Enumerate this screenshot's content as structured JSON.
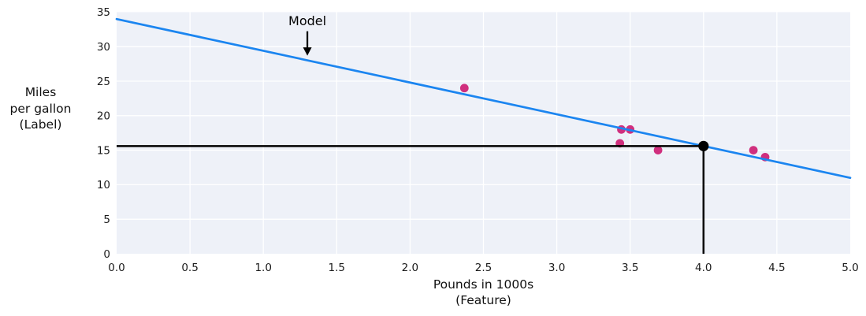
{
  "figure": {
    "background": "#ffffff",
    "plot_background": "#eef1f8",
    "grid_color": "#ffffff",
    "text_color": "#1a1a1a"
  },
  "chart_data": {
    "type": "scatter",
    "title": "",
    "xlabel_lines": [
      "Pounds in 1000s",
      "(Feature)"
    ],
    "ylabel_lines": [
      "Miles",
      "per gallon",
      "(Label)"
    ],
    "xlim": [
      0,
      5
    ],
    "ylim": [
      0,
      35
    ],
    "grid": true,
    "legend_position": "none",
    "x_ticks": [
      {
        "v": 0.0,
        "label": "0.0"
      },
      {
        "v": 0.5,
        "label": "0.5"
      },
      {
        "v": 1.0,
        "label": "1.0"
      },
      {
        "v": 1.5,
        "label": "1.5"
      },
      {
        "v": 2.0,
        "label": "2.0"
      },
      {
        "v": 2.5,
        "label": "2.5"
      },
      {
        "v": 3.0,
        "label": "3.0"
      },
      {
        "v": 3.5,
        "label": "3.5"
      },
      {
        "v": 4.0,
        "label": "4.0"
      },
      {
        "v": 4.5,
        "label": "4.5"
      },
      {
        "v": 5.0,
        "label": "5.0"
      }
    ],
    "y_ticks": [
      {
        "v": 0,
        "label": "0"
      },
      {
        "v": 5,
        "label": "5"
      },
      {
        "v": 10,
        "label": "10"
      },
      {
        "v": 15,
        "label": "15"
      },
      {
        "v": 20,
        "label": "20"
      },
      {
        "v": 25,
        "label": "25"
      },
      {
        "v": 30,
        "label": "30"
      },
      {
        "v": 35,
        "label": "35"
      }
    ],
    "series": [
      {
        "name": "data-points",
        "type": "scatter",
        "color": "#d02f7e",
        "marker_radius": 5.4,
        "points": [
          {
            "x": 3.5,
            "y": 18
          },
          {
            "x": 3.69,
            "y": 15
          },
          {
            "x": 3.44,
            "y": 18
          },
          {
            "x": 3.43,
            "y": 16
          },
          {
            "x": 4.34,
            "y": 15
          },
          {
            "x": 4.42,
            "y": 14
          },
          {
            "x": 2.37,
            "y": 24
          }
        ]
      },
      {
        "name": "model-line",
        "type": "line",
        "color": "#1b85f0",
        "width": 2.7,
        "x": [
          0,
          5
        ],
        "y": [
          34,
          11
        ]
      }
    ],
    "prediction_marker": {
      "x": 4.0,
      "y": 15.6,
      "color": "#000000",
      "line_width": 2.5,
      "dot_radius": 6.6
    },
    "annotation": {
      "text": "Model",
      "color": "#000000",
      "text_at": {
        "x": 1.3,
        "y": 33.6
      },
      "arrow_tip": {
        "x": 1.3,
        "y": 28.7
      }
    }
  }
}
